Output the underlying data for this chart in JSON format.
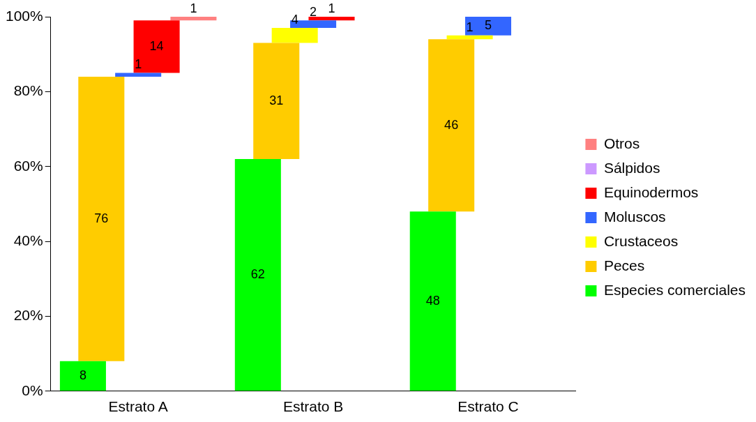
{
  "chart_data": {
    "type": "bar",
    "categories": [
      "Estrato A",
      "Estrato B",
      "Estrato C"
    ],
    "ylim": [
      0,
      100
    ],
    "yticks": [
      {
        "value": 0,
        "label": "0%"
      },
      {
        "value": 20,
        "label": "20%"
      },
      {
        "value": 40,
        "label": "40%"
      },
      {
        "value": 60,
        "label": "60%"
      },
      {
        "value": 80,
        "label": "80%"
      },
      {
        "value": 100,
        "label": "100%"
      }
    ],
    "grid": false,
    "legend": "right",
    "data_labels": true,
    "series": [
      {
        "name": "Especies comerciales",
        "color": "#00ff00",
        "base": [
          0,
          0,
          0
        ],
        "values": [
          8,
          62,
          48
        ]
      },
      {
        "name": "Peces",
        "color": "#ffcc00",
        "base": [
          8,
          62,
          48
        ],
        "values": [
          76,
          31,
          46
        ]
      },
      {
        "name": "Crustaceos",
        "color": "#ffff00",
        "base": [
          null,
          93,
          94
        ],
        "values": [
          null,
          4,
          1
        ]
      },
      {
        "name": "Moluscos",
        "color": "#3366ff",
        "base": [
          84,
          97,
          95
        ],
        "values": [
          1,
          2,
          5
        ]
      },
      {
        "name": "Equinodermos",
        "color": "#ff0000",
        "base": [
          85,
          99,
          null
        ],
        "values": [
          14,
          1,
          null
        ]
      },
      {
        "name": "Sálpidos",
        "color": "#cc99ff",
        "base": [
          null,
          null,
          null
        ],
        "values": [
          null,
          null,
          null
        ]
      },
      {
        "name": "Otros",
        "color": "#ff8080",
        "base": [
          99,
          null,
          null
        ],
        "values": [
          1,
          null,
          null
        ]
      }
    ]
  }
}
